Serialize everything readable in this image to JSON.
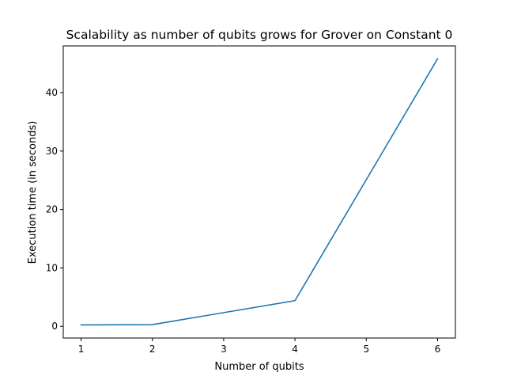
{
  "chart_data": {
    "type": "line",
    "title": "Scalability as number of qubits grows for Grover on Constant 0",
    "xlabel": "Number of qubits",
    "ylabel": "Execution time (in seconds)",
    "x": [
      1,
      2,
      4,
      6
    ],
    "series": [
      {
        "values": [
          0.25,
          0.3,
          4.4,
          45.8
        ],
        "color": "#1f77b4"
      }
    ],
    "xlim": [
      0.75,
      6.25
    ],
    "ylim": [
      -2.0,
      48.0
    ],
    "xticks": [
      1,
      2,
      3,
      4,
      5,
      6
    ],
    "yticks": [
      0,
      10,
      20,
      30,
      40
    ],
    "grid": false,
    "legend": "none"
  }
}
